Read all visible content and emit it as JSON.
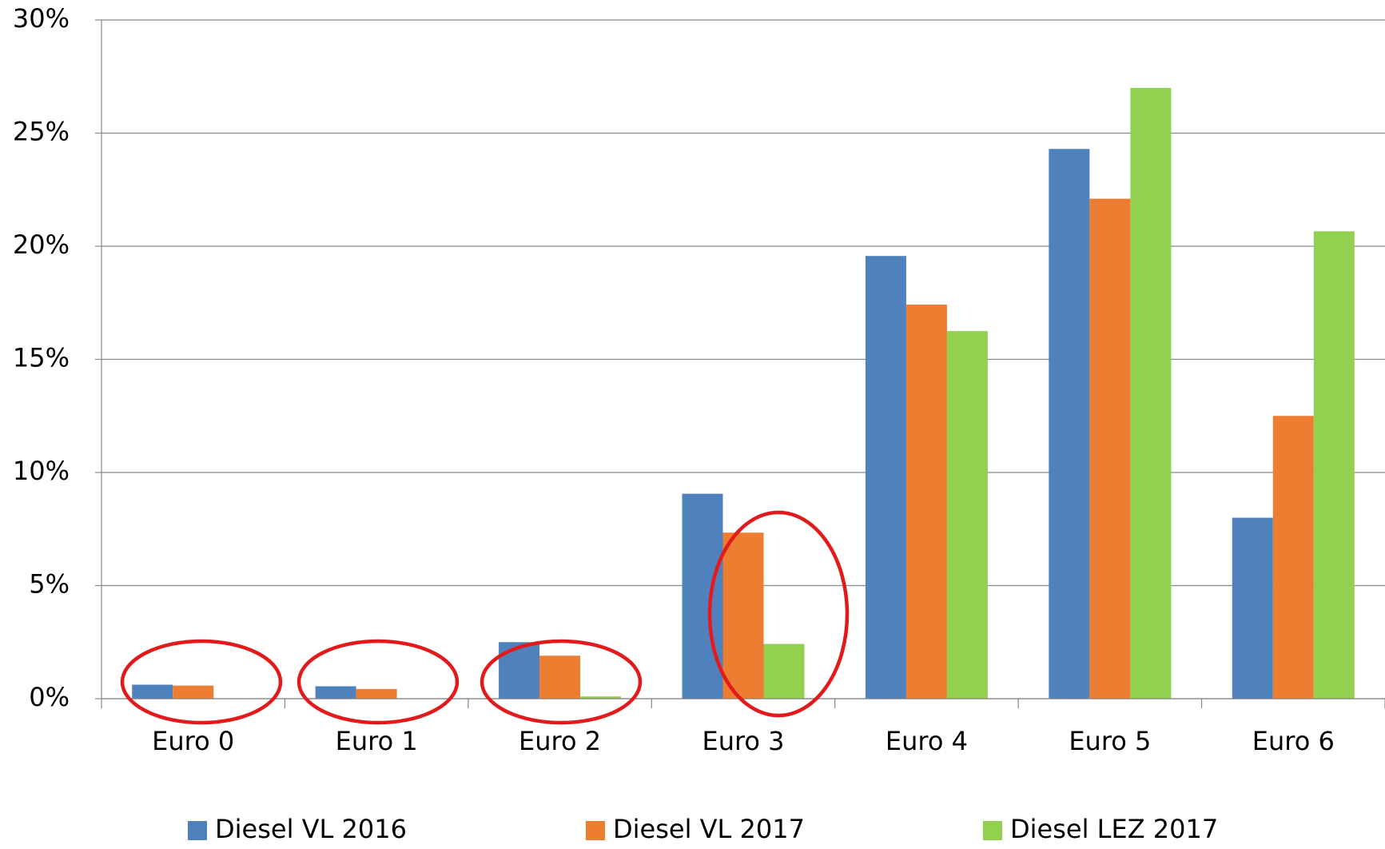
{
  "chart_data": {
    "type": "bar",
    "categories": [
      "Euro 0",
      "Euro 1",
      "Euro 2",
      "Euro 3",
      "Euro 4",
      "Euro 5",
      "Euro 6"
    ],
    "series": [
      {
        "name": "Diesel VL 2016",
        "color": "#4f81bd",
        "values": [
          0.62,
          0.55,
          2.5,
          9.06,
          19.57,
          24.3,
          8.0
        ]
      },
      {
        "name": "Diesel VL 2017",
        "color": "#ed7d31",
        "values": [
          0.58,
          0.43,
          1.9,
          7.34,
          17.42,
          22.1,
          12.5
        ]
      },
      {
        "name": "Diesel LEZ 2017",
        "color": "#92d050",
        "values": [
          0,
          0,
          0.1,
          2.42,
          16.25,
          27.0,
          20.66
        ]
      }
    ],
    "ylim": [
      0,
      30
    ],
    "yticks": [
      {
        "value": 0,
        "label": "0%"
      },
      {
        "value": 5,
        "label": "5%"
      },
      {
        "value": 10,
        "label": "10%"
      },
      {
        "value": 15,
        "label": "15%"
      },
      {
        "value": 20,
        "label": "20%"
      },
      {
        "value": 25,
        "label": "25%"
      },
      {
        "value": 30,
        "label": "30%"
      }
    ],
    "grid": true,
    "legend": "bottom"
  }
}
